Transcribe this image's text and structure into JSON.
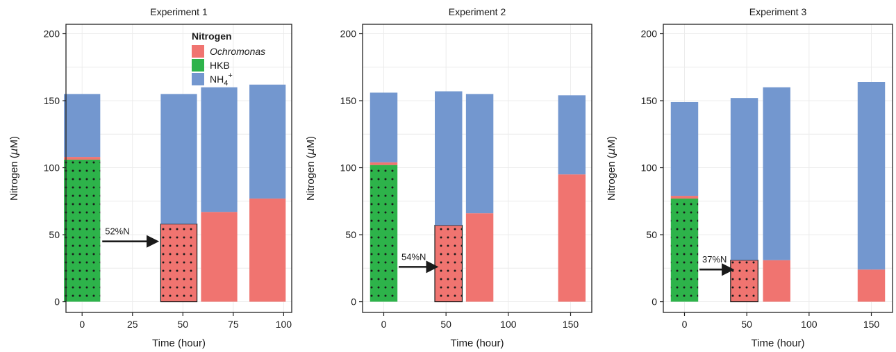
{
  "colors": {
    "ochromonas": "#f07470",
    "hkb": "#2db34a",
    "nh4": "#7397cf"
  },
  "chart_data": [
    {
      "type": "bar",
      "stacked": true,
      "title": "Experiment 1",
      "xlabel": "Time (hour)",
      "ylabel_main": "Nitrogen (",
      "ylabel_mu": "μ",
      "ylabel_tail": "M)",
      "xlim": [
        -8,
        104
      ],
      "ylim": [
        -8,
        207
      ],
      "xticks": [
        0,
        25,
        50,
        75,
        100
      ],
      "yticks": [
        0,
        50,
        100,
        150,
        200
      ],
      "bar_width": 18,
      "grid": true,
      "legend": {
        "position": "top-right",
        "title": "Nitrogen",
        "items": [
          {
            "key": "ochromonas",
            "label": "Ochromonas",
            "italic": true
          },
          {
            "key": "hkb",
            "label": "HKB"
          },
          {
            "key": "nh4",
            "label": "NH",
            "sub": "4",
            "sup": "+"
          }
        ]
      },
      "bars": [
        {
          "x": 0,
          "ochromonas": 2,
          "hkb": 106,
          "nh4": 47,
          "pattern": "hkb"
        },
        {
          "x": 48,
          "ochromonas": 58,
          "hkb": 0,
          "nh4": 97,
          "pattern": "ochromonas"
        },
        {
          "x": 68,
          "ochromonas": 67,
          "hkb": 0,
          "nh4": 93
        },
        {
          "x": 92,
          "ochromonas": 77,
          "hkb": 0,
          "nh4": 85
        }
      ],
      "annotation": {
        "text": "52%N",
        "from": [
          10,
          45
        ],
        "to": [
          37,
          45
        ]
      }
    },
    {
      "type": "bar",
      "stacked": true,
      "title": "Experiment 2",
      "xlabel": "Time (hour)",
      "ylabel_main": "Nitrogen (",
      "ylabel_mu": "μ",
      "ylabel_tail": "M)",
      "xlim": [
        -17,
        167
      ],
      "ylim": [
        -8,
        207
      ],
      "xticks": [
        0,
        50,
        100,
        150
      ],
      "yticks": [
        0,
        50,
        100,
        150,
        200
      ],
      "bar_width": 22,
      "grid": true,
      "bars": [
        {
          "x": 0,
          "ochromonas": 2,
          "hkb": 102,
          "nh4": 52,
          "pattern": "hkb"
        },
        {
          "x": 52,
          "ochromonas": 57,
          "hkb": 0,
          "nh4": 100,
          "pattern": "ochromonas"
        },
        {
          "x": 77,
          "ochromonas": 66,
          "hkb": 0,
          "nh4": 89
        },
        {
          "x": 151,
          "ochromonas": 95,
          "hkb": 0,
          "nh4": 59
        }
      ],
      "annotation": {
        "text": "54%N",
        "from": [
          12,
          26
        ],
        "to": [
          42,
          26
        ]
      }
    },
    {
      "type": "bar",
      "stacked": true,
      "title": "Experiment 3",
      "xlabel": "Time (hour)",
      "ylabel_main": "Nitrogen (",
      "ylabel_mu": "μ",
      "ylabel_tail": "M)",
      "xlim": [
        -17,
        167
      ],
      "ylim": [
        -8,
        207
      ],
      "xticks": [
        0,
        50,
        100,
        150
      ],
      "yticks": [
        0,
        50,
        100,
        150,
        200
      ],
      "bar_width": 22,
      "grid": true,
      "bars": [
        {
          "x": 0,
          "ochromonas": 2,
          "hkb": 77,
          "nh4": 70,
          "pattern": "hkb"
        },
        {
          "x": 48,
          "ochromonas": 31,
          "hkb": 0,
          "nh4": 121,
          "pattern": "ochromonas"
        },
        {
          "x": 74,
          "ochromonas": 31,
          "hkb": 0,
          "nh4": 129
        },
        {
          "x": 150,
          "ochromonas": 24,
          "hkb": 0,
          "nh4": 140
        }
      ],
      "annotation": {
        "text": "37%N",
        "from": [
          12,
          24
        ],
        "to": [
          38,
          24
        ]
      }
    }
  ]
}
